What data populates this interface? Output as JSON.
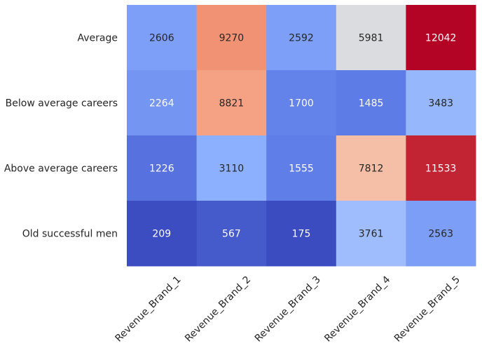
{
  "chart_data": {
    "type": "heatmap",
    "title": "",
    "xlabel": "",
    "ylabel": "",
    "rows": [
      "Average",
      "Below average careers",
      "Above average careers",
      "Old successful men"
    ],
    "columns": [
      "Revenue_Brand_1",
      "Revenue_Brand_2",
      "Revenue_Brand_3",
      "Revenue_Brand_4",
      "Revenue_Brand_5"
    ],
    "values": [
      [
        2606,
        9270,
        2592,
        5981,
        12042
      ],
      [
        2264,
        8821,
        1700,
        1485,
        3483
      ],
      [
        1226,
        3110,
        1555,
        7812,
        11533
      ],
      [
        209,
        567,
        175,
        3761,
        2563
      ]
    ],
    "colormap": "coolwarm",
    "colorbar": false,
    "annotate": true
  }
}
